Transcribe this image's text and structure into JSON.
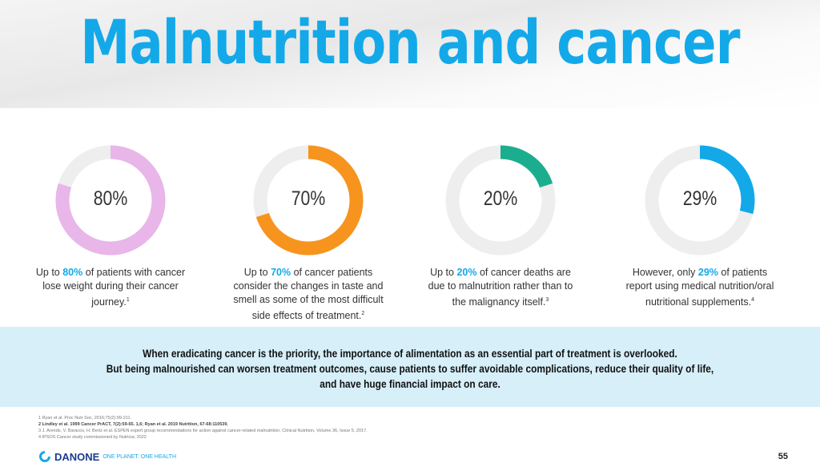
{
  "title": "Malnutrition and cancer",
  "stats": [
    {
      "value": 80,
      "label": "80%",
      "color": "#e8b6e8",
      "pre": "Up to ",
      "hl": "80%",
      "post": " of patients with cancer lose weight during their cancer journey.",
      "sup": "1"
    },
    {
      "value": 70,
      "label": "70%",
      "color": "#f7941d",
      "pre": "Up to ",
      "hl": "70%",
      "post": " of cancer patients consider the changes in taste and smell as some of the most difficult side effects of treatment.",
      "sup": "2"
    },
    {
      "value": 20,
      "label": "20%",
      "color": "#1aae8e",
      "pre": "Up to ",
      "hl": "20%",
      "post": " of cancer deaths are due to malnutrition rather than to the malignancy itself.",
      "sup": "3"
    },
    {
      "value": 29,
      "label": "29%",
      "color": "#13a9e9",
      "pre": "However, only ",
      "hl": "29%",
      "post": " of patients report using medical nutrition/oral nutritional supplements.",
      "sup": "4"
    }
  ],
  "banner": [
    "When eradicating cancer is the priority, the importance of alimentation as an essential part of treatment is overlooked.",
    "But being malnourished can worsen treatment outcomes, cause patients to suffer avoidable complications, reduce their quality of life,",
    "and have huge financial impact on care."
  ],
  "references": [
    "1 Ryan et al. Proc Nutr Soc, 2016;75(2):99-211.",
    "2 Lindley et al. 1999 Cancer PrACT, 7(2):59-65. 1,6; Ryan et al. 2019 Nutrition, 67-68:110539.",
    "3 J. Arends, V. Baracos, H. Bertz et al. ESPEN expert group recommendations for action against cancer-related malnutrition, Clinical Nutrition, Volume 36, Issue 5, 2017.",
    "4 IPSOS Cancer study commissioned by Nutricia; 2022"
  ],
  "logo": {
    "name": "DANONE",
    "tagline": "ONE PLANET. ONE HEALTH"
  },
  "page_number": "55",
  "colors": {
    "accent": "#13a9e9",
    "track": "#eeeeee",
    "banner": "#d6eff9"
  }
}
